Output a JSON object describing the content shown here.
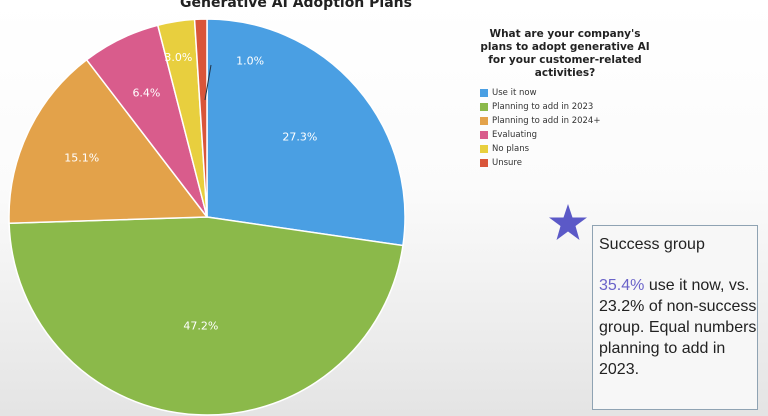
{
  "chart_data": {
    "type": "pie",
    "title": "Generative AI Adoption Plans",
    "legend_title": "What are your company's plans to adopt generative AI for your customer-related activities?",
    "legend_position": "right",
    "slices": [
      {
        "name": "Use it now",
        "value": 27.3,
        "label": "27.3%",
        "color": "#4a9fe3"
      },
      {
        "name": "Planning to add in 2023",
        "value": 47.2,
        "label": "47.2%",
        "color": "#8bb94a"
      },
      {
        "name": "Planning to add in 2024+",
        "value": 15.1,
        "label": "15.1%",
        "color": "#e3a24a"
      },
      {
        "name": "Evaluating",
        "value": 6.4,
        "label": "6.4%",
        "color": "#d95c8c"
      },
      {
        "name": "No plans",
        "value": 3.0,
        "label": "3.0%",
        "color": "#e8cf3e"
      },
      {
        "name": "Unsure",
        "value": 1.0,
        "label": "1.0%",
        "color": "#d9553a"
      }
    ]
  },
  "note": {
    "title": "Success group",
    "highlight": "35.4%",
    "text": " use it now, vs. 23.2% of non-success group. Equal numbers planning to add in 2023.",
    "star_color": "#5b59c7"
  }
}
